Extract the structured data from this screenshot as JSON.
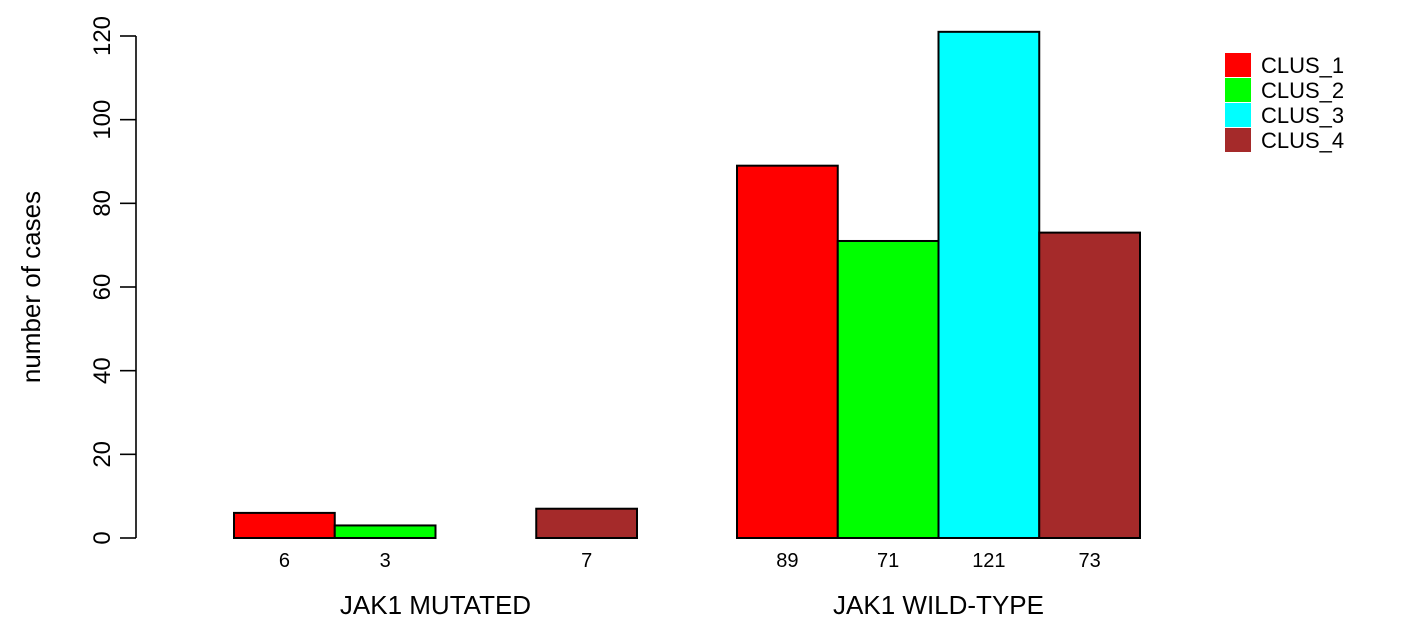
{
  "chart_data": {
    "type": "bar",
    "groups": [
      "JAK1 MUTATED",
      "JAK1 WILD-TYPE"
    ],
    "series": [
      {
        "name": "CLUS_1",
        "color": "#ff0000",
        "values": [
          6,
          89
        ]
      },
      {
        "name": "CLUS_2",
        "color": "#00ff00",
        "values": [
          3,
          71
        ]
      },
      {
        "name": "CLUS_3",
        "color": "#00ffff",
        "values": [
          0,
          121
        ]
      },
      {
        "name": "CLUS_4",
        "color": "#a52a2a",
        "values": [
          7,
          73
        ]
      }
    ],
    "bar_labels": [
      [
        "6",
        "3",
        "",
        "7"
      ],
      [
        "89",
        "71",
        "121",
        "73"
      ]
    ],
    "ylabel": "number of cases",
    "ylim": [
      0,
      120
    ],
    "yticks": [
      0,
      20,
      40,
      60,
      80,
      100,
      120
    ],
    "yticklabels": [
      "0",
      "20",
      "40",
      "60",
      "80",
      "100",
      "120"
    ],
    "grid": false,
    "legend_position": "top-right"
  }
}
